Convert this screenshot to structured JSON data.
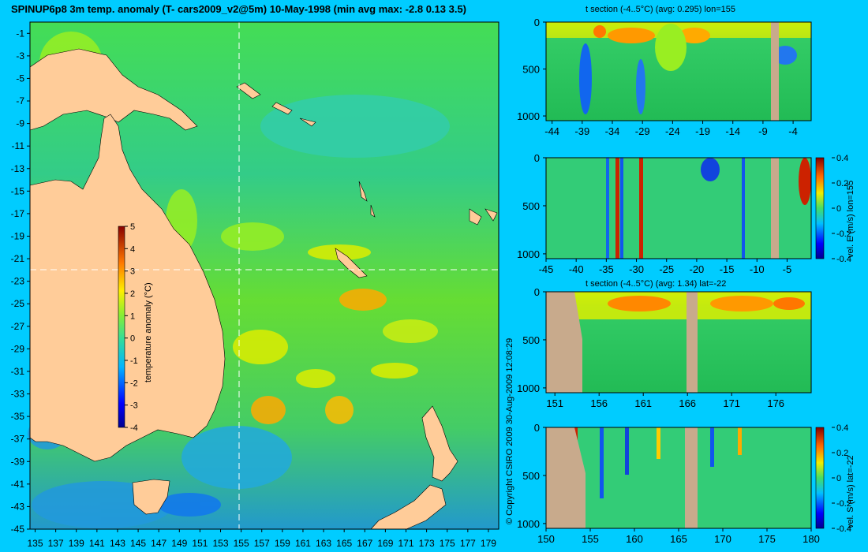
{
  "title": "SPINUP6p8 3m temp. anomaly (T- cars2009_v2@5m) 10-May-1998 (min avg max: -2.8 0.13 3.5)",
  "copyright": "© Copyright CSIRO 2009   30-Aug-2009 12:08:29",
  "colors": {
    "background": "#00ccff",
    "land": "#ffcc99",
    "section_land": "#c8aa8c"
  },
  "chart_data": [
    {
      "type": "heatmap",
      "panel": "map",
      "x_ticks": [
        "135",
        "137",
        "139",
        "141",
        "143",
        "145",
        "147",
        "149",
        "151",
        "153",
        "155",
        "157",
        "159",
        "161",
        "163",
        "165",
        "167",
        "169",
        "171",
        "173",
        "175",
        "177",
        "179"
      ],
      "y_ticks": [
        "-1",
        "-3",
        "-5",
        "-7",
        "-9",
        "-11",
        "-13",
        "-15",
        "-17",
        "-19",
        "-21",
        "-23",
        "-25",
        "-27",
        "-29",
        "-31",
        "-33",
        "-35",
        "-37",
        "-39",
        "-41",
        "-43",
        "-45"
      ],
      "xlim": [
        134.5,
        180
      ],
      "ylim": [
        -45,
        0
      ],
      "crosshair_lon": 155,
      "crosshair_lat": -22,
      "colorbar": {
        "label": "temperature anomaly (°C)",
        "ticks": [
          "5",
          "4",
          "3",
          "2",
          "1",
          "0",
          "-1",
          "-2",
          "-3",
          "-4"
        ],
        "range": [
          -4,
          5
        ]
      }
    },
    {
      "type": "heatmap",
      "panel": "t-section-lon",
      "title": "t section (-4..5°C) (avg: 0.295) lon=155",
      "x_ticks": [
        "-44",
        "-39",
        "-34",
        "-29",
        "-24",
        "-19",
        "-14",
        "-9",
        "-4"
      ],
      "y_ticks": [
        "0",
        "500",
        "1000"
      ],
      "xlim": [
        -45,
        -1
      ],
      "ylim": [
        1050,
        0
      ]
    },
    {
      "type": "heatmap",
      "panel": "vel-e-section",
      "x_ticks": [
        "-45",
        "-40",
        "-35",
        "-30",
        "-25",
        "-20",
        "-15",
        "-10",
        "-5"
      ],
      "y_ticks": [
        "0",
        "500",
        "1000"
      ],
      "xlim": [
        -45,
        -1
      ],
      "ylim": [
        1050,
        0
      ],
      "colorbar": {
        "label": "vel. E (m/s) lon=155",
        "ticks": [
          "0.4",
          "0.2",
          "0",
          "-0.2",
          "-0.4"
        ],
        "range": [
          -0.4,
          0.4
        ]
      }
    },
    {
      "type": "heatmap",
      "panel": "t-section-lat",
      "title": "t section (-4..5°C) (avg: 1.34) lat=-22",
      "x_ticks": [
        "151",
        "156",
        "161",
        "166",
        "171",
        "176"
      ],
      "y_ticks": [
        "0",
        "500",
        "1000"
      ],
      "xlim": [
        150,
        180
      ],
      "ylim": [
        1050,
        0
      ]
    },
    {
      "type": "heatmap",
      "panel": "vel-s-section",
      "x_ticks": [
        "150",
        "155",
        "160",
        "165",
        "170",
        "175",
        "180"
      ],
      "y_ticks": [
        "0",
        "500",
        "1000"
      ],
      "xlim": [
        150,
        180
      ],
      "ylim": [
        1050,
        0
      ],
      "colorbar": {
        "label": "vel. S (m/s) lat=-22",
        "ticks": [
          "0.4",
          "0.2",
          "0",
          "-0.2",
          "-0.4"
        ],
        "range": [
          -0.4,
          0.4
        ]
      }
    }
  ]
}
